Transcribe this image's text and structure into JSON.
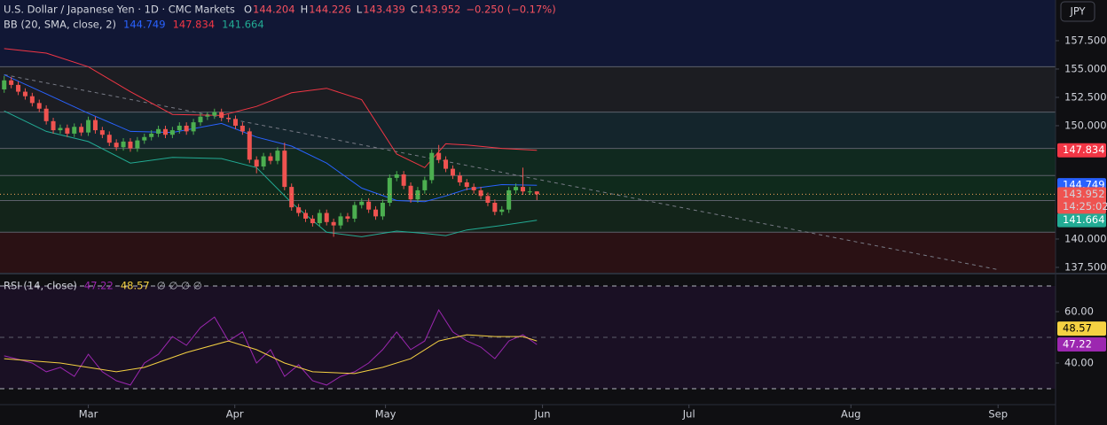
{
  "header": {
    "symbol": "U.S. Dollar / Japanese Yen · 1D · CMC Markets",
    "ohlc_keys": [
      "O",
      "H",
      "L",
      "C"
    ],
    "change": "−0.250 (−0.17%)"
  },
  "currency": "JPY",
  "countdown": "14:25:02",
  "chart_data": [
    {
      "type": "candlestick",
      "x": [
        0,
        1,
        2,
        3,
        4,
        5,
        6,
        7,
        8,
        9,
        10,
        11,
        12,
        13,
        14,
        15,
        16,
        17,
        18,
        19,
        20,
        21,
        22,
        23,
        24,
        25,
        26,
        27,
        28,
        29,
        30,
        31,
        32,
        33,
        34,
        35,
        36,
        37,
        38,
        39,
        40,
        41,
        42,
        43,
        44,
        45,
        46,
        47,
        48,
        49,
        50,
        51,
        52,
        53,
        54,
        55,
        56,
        57,
        58,
        59,
        60,
        61,
        62,
        63,
        64,
        65,
        66,
        67,
        68,
        69,
        70,
        71,
        72,
        73,
        74,
        75,
        76
      ],
      "open": [
        153.2,
        154.0,
        153.6,
        153.0,
        152.6,
        152.0,
        151.5,
        150.4,
        149.6,
        149.8,
        149.3,
        149.9,
        149.4,
        150.5,
        149.6,
        149.2,
        148.5,
        148.1,
        148.6,
        148.0,
        148.7,
        149.0,
        149.3,
        149.7,
        149.2,
        149.6,
        150.0,
        149.5,
        150.3,
        150.8,
        150.9,
        151.2,
        150.7,
        150.6,
        150.0,
        149.5,
        147.0,
        146.4,
        147.3,
        146.9,
        147.8,
        144.6,
        142.8,
        142.3,
        141.8,
        141.4,
        142.3,
        141.5,
        141.2,
        142.0,
        141.8,
        143.0,
        143.3,
        142.6,
        142.0,
        143.2,
        145.4,
        145.7,
        144.7,
        143.5,
        144.3,
        145.2,
        147.6,
        147.0,
        146.2,
        145.6,
        145.0,
        144.6,
        144.3,
        143.8,
        143.2,
        142.4,
        142.6,
        144.3,
        144.6,
        144.2,
        144.204
      ],
      "high": [
        154.4,
        154.3,
        153.9,
        153.3,
        152.9,
        152.3,
        151.8,
        150.7,
        150.1,
        150.1,
        150.2,
        150.2,
        150.8,
        150.8,
        149.9,
        149.5,
        148.8,
        148.9,
        148.9,
        149.0,
        149.3,
        149.6,
        150.0,
        150.0,
        149.9,
        150.3,
        150.3,
        150.6,
        151.1,
        151.2,
        151.5,
        151.5,
        151.0,
        150.9,
        150.3,
        149.8,
        147.3,
        147.6,
        147.6,
        148.1,
        148.5,
        144.9,
        143.1,
        142.6,
        142.1,
        142.6,
        142.6,
        141.8,
        142.3,
        142.3,
        143.3,
        143.6,
        143.6,
        142.9,
        143.5,
        145.7,
        146.0,
        146.0,
        145.0,
        144.6,
        145.5,
        147.9,
        148.3,
        147.3,
        146.5,
        145.9,
        145.3,
        144.9,
        144.6,
        144.1,
        143.5,
        142.9,
        144.6,
        144.9,
        146.3,
        144.6,
        144.226
      ],
      "low": [
        152.9,
        153.3,
        152.7,
        152.3,
        151.7,
        151.2,
        150.1,
        149.3,
        149.3,
        149.0,
        149.0,
        149.1,
        149.1,
        149.3,
        148.9,
        148.2,
        147.8,
        147.8,
        147.7,
        147.7,
        148.4,
        148.7,
        149.0,
        148.9,
        148.9,
        149.3,
        149.2,
        149.2,
        150.0,
        150.5,
        150.6,
        150.4,
        150.3,
        149.7,
        149.2,
        146.7,
        145.8,
        146.1,
        146.6,
        146.6,
        144.3,
        142.5,
        142.0,
        141.5,
        141.1,
        141.1,
        141.2,
        140.2,
        140.9,
        141.5,
        141.5,
        142.7,
        142.3,
        141.7,
        141.7,
        142.9,
        145.1,
        144.4,
        143.2,
        143.2,
        144.0,
        144.9,
        146.7,
        145.9,
        145.3,
        144.7,
        144.3,
        144.0,
        143.5,
        142.9,
        142.1,
        142.1,
        142.3,
        144.0,
        143.9,
        143.9,
        143.439
      ],
      "close": [
        154.0,
        153.6,
        153.0,
        152.6,
        152.0,
        151.5,
        150.4,
        149.6,
        149.8,
        149.3,
        149.9,
        149.4,
        150.5,
        149.6,
        149.2,
        148.5,
        148.1,
        148.6,
        148.0,
        148.7,
        149.0,
        149.3,
        149.7,
        149.2,
        149.6,
        150.0,
        149.5,
        150.3,
        150.8,
        150.9,
        151.2,
        150.7,
        150.6,
        150.0,
        149.5,
        147.0,
        146.4,
        147.3,
        146.9,
        147.8,
        144.6,
        142.8,
        142.3,
        141.8,
        141.4,
        142.3,
        141.5,
        141.2,
        142.0,
        141.8,
        143.0,
        143.3,
        142.6,
        142.0,
        143.2,
        145.4,
        145.7,
        144.7,
        143.5,
        144.3,
        145.2,
        147.6,
        147.0,
        146.2,
        145.6,
        145.0,
        144.6,
        144.3,
        143.8,
        143.2,
        142.4,
        142.6,
        144.3,
        144.6,
        144.2,
        144.2,
        143.952
      ],
      "up_color": "#4caf50",
      "down_color": "#ef5350",
      "bands": {
        "label": "BB (20, SMA, close, 2)",
        "x": [
          0,
          6,
          12,
          18,
          24,
          31,
          36,
          41,
          46,
          51,
          56,
          60,
          63,
          66,
          71,
          76
        ],
        "series": [
          {
            "color": "#2962ff",
            "values": [
              154.5,
              152.8,
              151.1,
              149.5,
              149.4,
              150.2,
              149.0,
              148.2,
              146.7,
              144.5,
              143.4,
              143.3,
              143.8,
              144.4,
              144.8,
              144.749
            ]
          },
          {
            "color": "#f23645",
            "values": [
              156.8,
              156.4,
              155.2,
              153.0,
              151.0,
              150.9,
              151.7,
              152.9,
              153.3,
              152.3,
              147.5,
              146.3,
              148.4,
              148.3,
              148.0,
              147.834
            ]
          },
          {
            "color": "#22ab94",
            "values": [
              151.3,
              149.5,
              148.6,
              146.7,
              147.2,
              147.1,
              146.3,
              143.2,
              140.6,
              140.2,
              140.7,
              140.5,
              140.3,
              140.8,
              141.2,
              141.664
            ]
          }
        ]
      },
      "levels": [
        155.2,
        151.2,
        148.0,
        145.6,
        143.4,
        140.6
      ],
      "level_color": "#5d606b",
      "zone_colors": [
        "#111735",
        "#1c1d22",
        "#14252c",
        "#10291f",
        "#0f2a1c",
        "#13241a",
        "#2a1114"
      ],
      "trendline": {
        "x": [
          0,
          141.8
        ],
        "y": [
          154.5,
          137.3
        ],
        "color": "#787b86"
      },
      "last_price_color": "#f7a35c",
      "xlim": [
        -0.6,
        150
      ],
      "ylim": [
        137.03,
        161.09
      ],
      "yticks": [
        {
          "value": 137.5,
          "label": "137.500"
        },
        {
          "value": 140,
          "label": "140.000"
        },
        {
          "value": 150,
          "label": "150.000"
        },
        {
          "value": 152.5,
          "label": "152.500"
        },
        {
          "value": 155,
          "label": "155.000"
        },
        {
          "value": 157.5,
          "label": "157.500"
        }
      ],
      "xticks": [
        {
          "value": 12,
          "label": "Mar"
        },
        {
          "value": 32.9,
          "label": "Apr"
        },
        {
          "value": 54.4,
          "label": "May"
        },
        {
          "value": 76.8,
          "label": "Jun"
        },
        {
          "value": 97.7,
          "label": "Jul"
        },
        {
          "value": 120.8,
          "label": "Aug"
        },
        {
          "value": 141.8,
          "label": "Sep"
        }
      ]
    },
    {
      "type": "line",
      "label": "RSI (14, close)",
      "extra_label": "∅ ∅ ∅ ∅",
      "series": [
        {
          "color": "#9c27b0",
          "x": [
            0,
            2,
            4,
            6,
            8,
            10,
            12,
            14,
            16,
            18,
            20,
            22,
            24,
            26,
            28,
            30,
            32,
            34,
            36,
            38,
            40,
            42,
            44,
            46,
            48,
            50,
            52,
            54,
            56,
            58,
            60,
            62,
            64,
            66,
            68,
            70,
            72,
            74,
            76
          ],
          "values": [
            42.8,
            41.4,
            40.0,
            36.6,
            38.3,
            34.8,
            43.4,
            36.6,
            33.1,
            31.4,
            40.0,
            43.4,
            50.3,
            46.9,
            53.8,
            57.9,
            48.6,
            52.1,
            40.0,
            45.2,
            34.8,
            39.3,
            33.1,
            31.4,
            34.8,
            36.6,
            40.0,
            45.2,
            52.1,
            45.2,
            48.6,
            60.7,
            52.1,
            48.6,
            46.2,
            41.7,
            48.6,
            51.0,
            47.22
          ]
        },
        {
          "color": "#f5d142",
          "x": [
            0,
            8,
            16,
            20,
            26,
            32,
            36,
            40,
            44,
            50,
            54,
            58,
            62,
            66,
            70,
            74,
            76
          ],
          "values": [
            41.7,
            40.0,
            36.6,
            38.3,
            44.1,
            48.6,
            45.2,
            40.0,
            36.6,
            35.9,
            38.3,
            41.7,
            48.6,
            51.0,
            50.3,
            50.3,
            48.57
          ]
        }
      ],
      "bands": [
        70,
        50,
        30
      ],
      "background": "#1a1024",
      "ylim": [
        24.48,
        74.48
      ],
      "yticks": [
        {
          "value": 40,
          "label": "40.00"
        },
        {
          "value": 60,
          "label": "60.00"
        }
      ]
    }
  ]
}
